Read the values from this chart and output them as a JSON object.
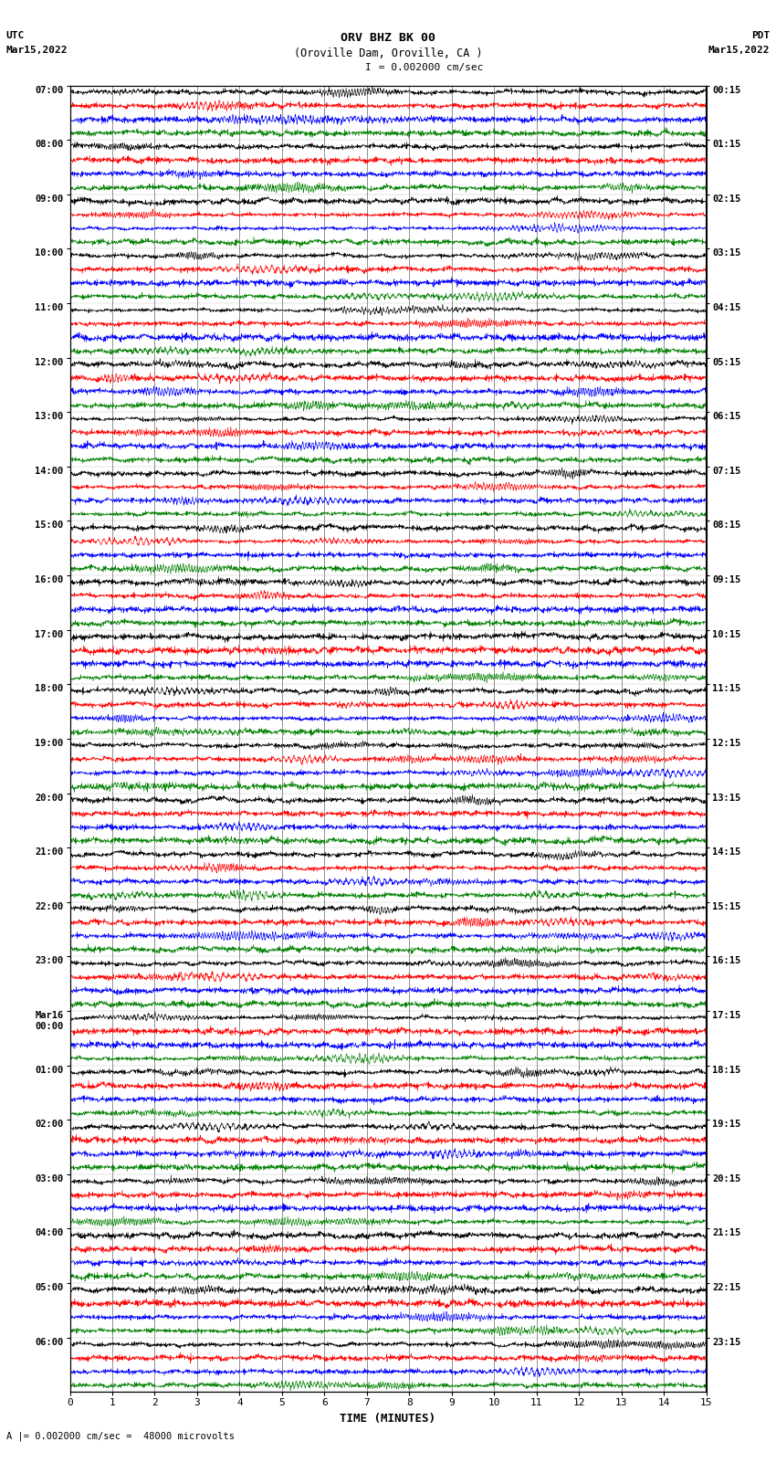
{
  "title_line1": "ORV BHZ BK 00",
  "title_line2": "(Oroville Dam, Oroville, CA )",
  "scale_label": "= 0.002000 cm/sec",
  "bottom_label": "= 0.002000 cm/sec =  48000 microvolts",
  "xlabel": "TIME (MINUTES)",
  "left_label": "UTC",
  "left_date": "Mar15,2022",
  "right_label": "PDT",
  "right_date": "Mar15,2022",
  "utc_times": [
    "07:00",
    "08:00",
    "09:00",
    "10:00",
    "11:00",
    "12:00",
    "13:00",
    "14:00",
    "15:00",
    "16:00",
    "17:00",
    "18:00",
    "19:00",
    "20:00",
    "21:00",
    "22:00",
    "23:00",
    "Mar16\n00:00",
    "01:00",
    "02:00",
    "03:00",
    "04:00",
    "05:00",
    "06:00"
  ],
  "pdt_times": [
    "00:15",
    "01:15",
    "02:15",
    "03:15",
    "04:15",
    "05:15",
    "06:15",
    "07:15",
    "08:15",
    "09:15",
    "10:15",
    "11:15",
    "12:15",
    "13:15",
    "14:15",
    "15:15",
    "16:15",
    "17:15",
    "18:15",
    "19:15",
    "20:15",
    "21:15",
    "22:15",
    "23:15"
  ],
  "n_rows": 24,
  "n_traces_per_row": 4,
  "trace_colors": [
    "black",
    "red",
    "blue",
    "green"
  ],
  "x_min": 0,
  "x_max": 15,
  "x_ticks": [
    0,
    1,
    2,
    3,
    4,
    5,
    6,
    7,
    8,
    9,
    10,
    11,
    12,
    13,
    14,
    15
  ],
  "bg_color": "white",
  "fig_width": 8.5,
  "fig_height": 16.13,
  "dpi": 100
}
